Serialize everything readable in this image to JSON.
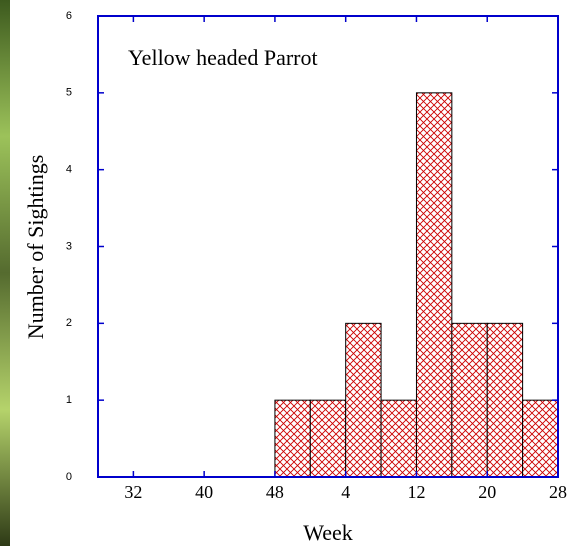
{
  "chart_data": {
    "type": "histogram",
    "title": "Yellow headed Parrot",
    "x_label": "Week",
    "y_label": "Number of Sightings",
    "bins": [
      48,
      52,
      56,
      60,
      64,
      68,
      72,
      76,
      80
    ],
    "values": [
      1,
      1,
      2,
      1,
      5,
      2,
      2,
      1
    ],
    "color": "#cc0000",
    "axis_color": "#0000cc",
    "xlim": [
      28,
      80
    ],
    "xticks": [
      32,
      40,
      48,
      {
        "value": 56,
        "label": "4"
      },
      {
        "value": 64,
        "label": "12"
      },
      {
        "value": 72,
        "label": "20"
      },
      {
        "value": 80,
        "label": "28"
      }
    ],
    "ylim": [
      0,
      6
    ],
    "yticks": [
      0,
      1,
      2,
      3,
      4,
      5,
      6
    ]
  }
}
